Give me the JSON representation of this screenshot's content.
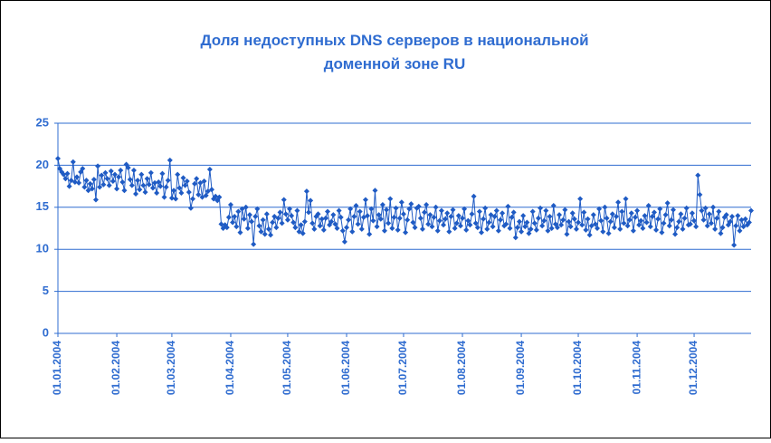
{
  "chart_data": {
    "type": "line",
    "title": [
      "Доля недоступных DNS серверов в национальной",
      "доменной зоне RU"
    ],
    "categories": [
      "01.01.2004",
      null,
      null,
      null,
      null,
      null,
      null,
      null,
      null,
      null,
      null,
      null,
      null,
      null,
      null,
      null,
      null,
      null,
      null,
      null,
      null,
      null,
      null,
      null,
      null,
      null,
      null,
      null,
      null,
      null,
      null,
      "01.02.2004",
      null,
      null,
      null,
      null,
      null,
      null,
      null,
      null,
      null,
      null,
      null,
      null,
      null,
      null,
      null,
      null,
      null,
      null,
      null,
      null,
      null,
      null,
      null,
      null,
      null,
      null,
      null,
      null,
      "01.03.2004",
      null,
      null,
      null,
      null,
      null,
      null,
      null,
      null,
      null,
      null,
      null,
      null,
      null,
      null,
      null,
      null,
      null,
      null,
      null,
      null,
      null,
      null,
      null,
      null,
      null,
      null,
      null,
      null,
      null,
      null,
      "01.04.2004",
      null,
      null,
      null,
      null,
      null,
      null,
      null,
      null,
      null,
      null,
      null,
      null,
      null,
      null,
      null,
      null,
      null,
      null,
      null,
      null,
      null,
      null,
      null,
      null,
      null,
      null,
      null,
      null,
      null,
      "01.05.2004",
      null,
      null,
      null,
      null,
      null,
      null,
      null,
      null,
      null,
      null,
      null,
      null,
      null,
      null,
      null,
      null,
      null,
      null,
      null,
      null,
      null,
      null,
      null,
      null,
      null,
      null,
      null,
      null,
      null,
      null,
      "01.06.2004",
      null,
      null,
      null,
      null,
      null,
      null,
      null,
      null,
      null,
      null,
      null,
      null,
      null,
      null,
      null,
      null,
      null,
      null,
      null,
      null,
      null,
      null,
      null,
      null,
      null,
      null,
      null,
      null,
      null,
      "01.07.2004",
      null,
      null,
      null,
      null,
      null,
      null,
      null,
      null,
      null,
      null,
      null,
      null,
      null,
      null,
      null,
      null,
      null,
      null,
      null,
      null,
      null,
      null,
      null,
      null,
      null,
      null,
      null,
      null,
      null,
      null,
      "01.08.2004",
      null,
      null,
      null,
      null,
      null,
      null,
      null,
      null,
      null,
      null,
      null,
      null,
      null,
      null,
      null,
      null,
      null,
      null,
      null,
      null,
      null,
      null,
      null,
      null,
      null,
      null,
      null,
      null,
      null,
      null,
      "01.09.2004",
      null,
      null,
      null,
      null,
      null,
      null,
      null,
      null,
      null,
      null,
      null,
      null,
      null,
      null,
      null,
      null,
      null,
      null,
      null,
      null,
      null,
      null,
      null,
      null,
      null,
      null,
      null,
      null,
      null,
      "01.10.2004",
      null,
      null,
      null,
      null,
      null,
      null,
      null,
      null,
      null,
      null,
      null,
      null,
      null,
      null,
      null,
      null,
      null,
      null,
      null,
      null,
      null,
      null,
      null,
      null,
      null,
      null,
      null,
      null,
      null,
      null,
      "01.11.2004",
      null,
      null,
      null,
      null,
      null,
      null,
      null,
      null,
      null,
      null,
      null,
      null,
      null,
      null,
      null,
      null,
      null,
      null,
      null,
      null,
      null,
      null,
      null,
      null,
      null,
      null,
      null,
      null,
      null,
      "01.12.2004",
      null,
      null,
      null,
      null,
      null,
      null,
      null,
      null,
      null,
      null,
      null,
      null,
      null,
      null,
      null,
      null,
      null,
      null,
      null,
      null,
      null,
      null,
      null,
      null,
      null,
      null,
      null,
      null,
      null,
      null
    ],
    "values": [
      20.8,
      19.6,
      19.2,
      18.9,
      18.4,
      19.0,
      17.5,
      18.2,
      20.4,
      18.0,
      18.6,
      17.9,
      19.2,
      19.6,
      17.4,
      18.2,
      17.0,
      17.8,
      17.2,
      18.3,
      15.9,
      19.9,
      17.4,
      18.8,
      17.7,
      19.1,
      18.4,
      17.6,
      19.3,
      18.1,
      18.9,
      17.2,
      18.6,
      19.4,
      18.0,
      17.0,
      20.1,
      19.7,
      18.3,
      17.6,
      19.4,
      16.6,
      18.2,
      17.1,
      18.9,
      17.6,
      16.8,
      18.4,
      17.7,
      19.1,
      17.3,
      17.9,
      16.7,
      18.0,
      17.5,
      19.0,
      16.2,
      17.4,
      18.2,
      20.6,
      16.1,
      17.0,
      16.0,
      18.9,
      17.3,
      16.7,
      18.5,
      17.6,
      18.1,
      16.8,
      14.9,
      16.0,
      17.8,
      18.4,
      16.5,
      17.9,
      16.2,
      18.1,
      16.4,
      16.9,
      19.5,
      17.1,
      16.0,
      16.3,
      15.8,
      16.2,
      13.0,
      12.5,
      12.9,
      12.6,
      13.8,
      15.3,
      13.2,
      13.9,
      12.7,
      14.5,
      12.0,
      14.8,
      13.6,
      15.0,
      12.5,
      14.1,
      13.3,
      10.6,
      13.9,
      14.8,
      12.8,
      12.1,
      13.5,
      11.8,
      14.2,
      12.4,
      11.7,
      13.2,
      13.9,
      12.6,
      13.7,
      14.4,
      13.1,
      15.9,
      14.2,
      13.5,
      14.8,
      14.0,
      13.2,
      12.6,
      14.6,
      12.1,
      12.9,
      11.9,
      13.3,
      16.9,
      14.4,
      15.8,
      13.1,
      12.4,
      13.9,
      14.2,
      12.8,
      13.6,
      12.3,
      13.7,
      14.5,
      12.9,
      13.3,
      14.1,
      13.0,
      12.5,
      14.6,
      13.8,
      12.2,
      10.9,
      12.6,
      13.5,
      14.8,
      12.1,
      13.9,
      15.2,
      13.0,
      14.5,
      12.4,
      13.8,
      15.9,
      14.0,
      11.8,
      14.8,
      13.4,
      17.0,
      12.7,
      14.1,
      13.6,
      15.3,
      12.2,
      14.7,
      13.1,
      16.0,
      12.5,
      13.8,
      14.9,
      12.3,
      13.7,
      15.6,
      14.2,
      12.0,
      13.5,
      14.8,
      15.4,
      13.2,
      12.6,
      14.9,
      15.1,
      13.7,
      12.4,
      14.4,
      15.3,
      13.0,
      14.1,
      12.7,
      13.8,
      15.0,
      12.2,
      13.4,
      14.6,
      12.9,
      13.6,
      14.3,
      12.1,
      13.9,
      14.7,
      12.5,
      13.1,
      14.0,
      12.8,
      13.7,
      14.8,
      12.3,
      13.4,
      12.9,
      14.2,
      16.3,
      13.1,
      12.6,
      14.5,
      12.0,
      13.6,
      14.9,
      12.4,
      13.2,
      14.1,
      12.7,
      13.9,
      14.6,
      12.2,
      13.5,
      14.3,
      12.8,
      13.0,
      15.1,
      12.5,
      13.8,
      14.4,
      11.4,
      12.6,
      13.3,
      12.1,
      14.0,
      12.7,
      13.2,
      11.9,
      12.4,
      14.5,
      13.1,
      12.3,
      13.7,
      14.9,
      12.8,
      13.4,
      14.6,
      12.2,
      13.9,
      12.5,
      15.2,
      13.0,
      12.6,
      14.1,
      12.9,
      13.5,
      14.7,
      11.8,
      13.3,
      12.7,
      14.3,
      13.6,
      12.4,
      13.2,
      16.0,
      12.9,
      14.4,
      12.3,
      13.6,
      11.7,
      12.8,
      14.1,
      13.0,
      12.5,
      14.8,
      13.4,
      12.1,
      15.0,
      13.7,
      11.9,
      13.3,
      14.2,
      12.6,
      13.9,
      15.6,
      12.4,
      14.5,
      13.1,
      16.0,
      12.8,
      13.5,
      14.3,
      12.2,
      13.8,
      14.6,
      12.9,
      13.4,
      12.5,
      14.0,
      13.2,
      15.2,
      12.7,
      13.9,
      14.4,
      12.3,
      13.6,
      14.8,
      12.0,
      13.1,
      14.1,
      15.5,
      12.8,
      13.5,
      14.7,
      11.8,
      12.6,
      13.3,
      14.2,
      12.4,
      13.7,
      14.9,
      12.9,
      13.0,
      14.3,
      13.4,
      12.7,
      18.8,
      16.5,
      14.6,
      13.5,
      14.9,
      12.8,
      14.2,
      13.1,
      15.0,
      12.4,
      13.7,
      14.5,
      11.9,
      12.6,
      13.8,
      14.1,
      12.9,
      13.3,
      13.9,
      10.5,
      12.8,
      14.0,
      12.2,
      13.5,
      12.7,
      13.6,
      12.9,
      13.2,
      14.6
    ],
    "color": "#1f5bc4",
    "ylim": [
      0,
      25
    ],
    "yticks": [
      0,
      5,
      10,
      15,
      20,
      25
    ],
    "grid": true
  }
}
